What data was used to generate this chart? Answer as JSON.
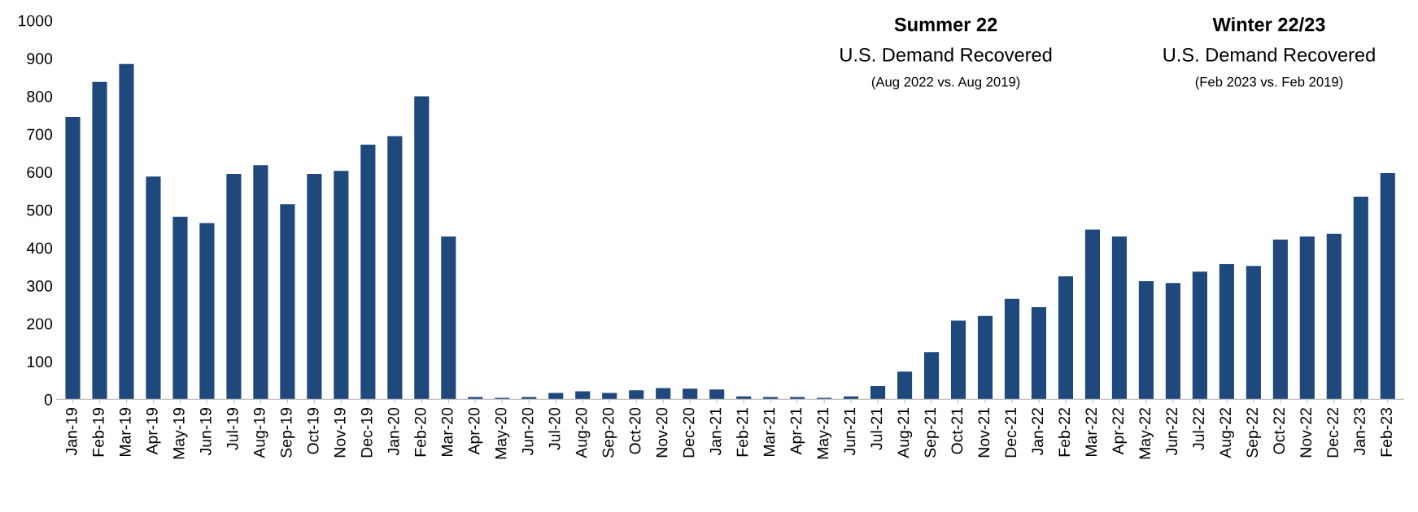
{
  "chart_data": {
    "type": "bar",
    "categories": [
      "Jan-19",
      "Feb-19",
      "Mar-19",
      "Apr-19",
      "May-19",
      "Jun-19",
      "Jul-19",
      "Aug-19",
      "Sep-19",
      "Oct-19",
      "Nov-19",
      "Dec-19",
      "Jan-20",
      "Feb-20",
      "Mar-20",
      "Apr-20",
      "May-20",
      "Jun-20",
      "Jul-20",
      "Aug-20",
      "Sep-20",
      "Oct-20",
      "Nov-20",
      "Dec-20",
      "Jan-21",
      "Feb-21",
      "Mar-21",
      "Apr-21",
      "May-21",
      "Jun-21",
      "Jul-21",
      "Aug-21",
      "Sep-21",
      "Oct-21",
      "Nov-21",
      "Dec-21",
      "Jan-22",
      "Feb-22",
      "Mar-22",
      "Apr-22",
      "May-22",
      "Jun-22",
      "Jul-22",
      "Aug-22",
      "Sep-22",
      "Oct-22",
      "Nov-22",
      "Dec-22",
      "Jan-23",
      "Feb-23"
    ],
    "values": [
      745,
      838,
      885,
      588,
      482,
      465,
      595,
      618,
      515,
      595,
      603,
      672,
      695,
      800,
      430,
      6,
      4,
      6,
      17,
      21,
      17,
      24,
      30,
      28,
      26,
      8,
      6,
      6,
      4,
      8,
      35,
      73,
      125,
      208,
      220,
      265,
      243,
      325,
      448,
      430,
      312,
      307,
      337,
      357,
      352,
      422,
      430,
      437,
      535,
      597
    ],
    "color": "#1f497d",
    "ylim": [
      0,
      1000
    ],
    "yticks": [
      0,
      100,
      200,
      300,
      400,
      500,
      600,
      700,
      800,
      900,
      1000
    ],
    "grid": false,
    "annotations": [
      "Summer 22",
      "U.S. Demand Recovered",
      "(Aug 2022 vs. Aug 2019)",
      "Winter 22/23",
      "U.S. Demand Recovered",
      "(Feb 2023 vs. Feb 2019)"
    ]
  }
}
